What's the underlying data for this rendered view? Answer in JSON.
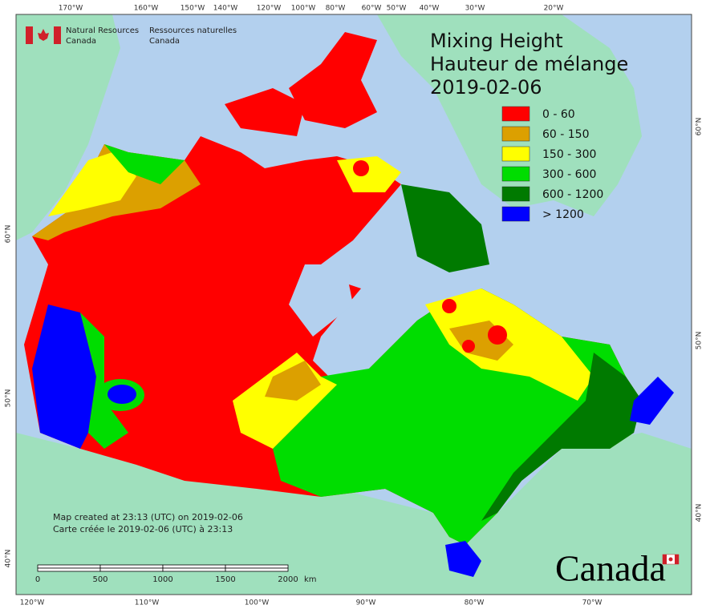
{
  "agency": {
    "english": [
      "Natural Resources",
      "Canada"
    ],
    "french": [
      "Ressources naturelles",
      "Canada"
    ]
  },
  "title": [
    "Mixing Height",
    "Hauteur de mélange",
    "2019-02-06"
  ],
  "legend": [
    {
      "label": "0 - 60",
      "color": "#ff0000"
    },
    {
      "label": "60 - 150",
      "color": "#dca000"
    },
    {
      "label": "150 - 300",
      "color": "#ffff00"
    },
    {
      "label": "300 - 600",
      "color": "#00dd00"
    },
    {
      "label": "600 - 1200",
      "color": "#007a00"
    },
    {
      "label": "> 1200",
      "color": "#0000ff"
    }
  ],
  "graticule": {
    "top": [
      "170°W",
      "160°W",
      "150°W",
      "140°W",
      "120°W",
      "100°W",
      "80°W",
      "60°W",
      "50°W",
      "40°W",
      "30°W",
      "20°W"
    ],
    "bottom": [
      "120°W",
      "110°W",
      "100°W",
      "90°W",
      "80°W",
      "70°W"
    ],
    "left": [
      "60°N",
      "50°N",
      "40°N"
    ],
    "right": [
      "60°N",
      "50°N",
      "40°N"
    ]
  },
  "credits": [
    "Map created at 23:13 (UTC) on 2019-02-06",
    "Carte créée le 2019-02-06 (UTC) à 23:13"
  ],
  "scale_bar": {
    "labels": [
      "0",
      "500",
      "1000",
      "1500",
      "2000"
    ],
    "unit": "km"
  },
  "wordmark": "Canada"
}
